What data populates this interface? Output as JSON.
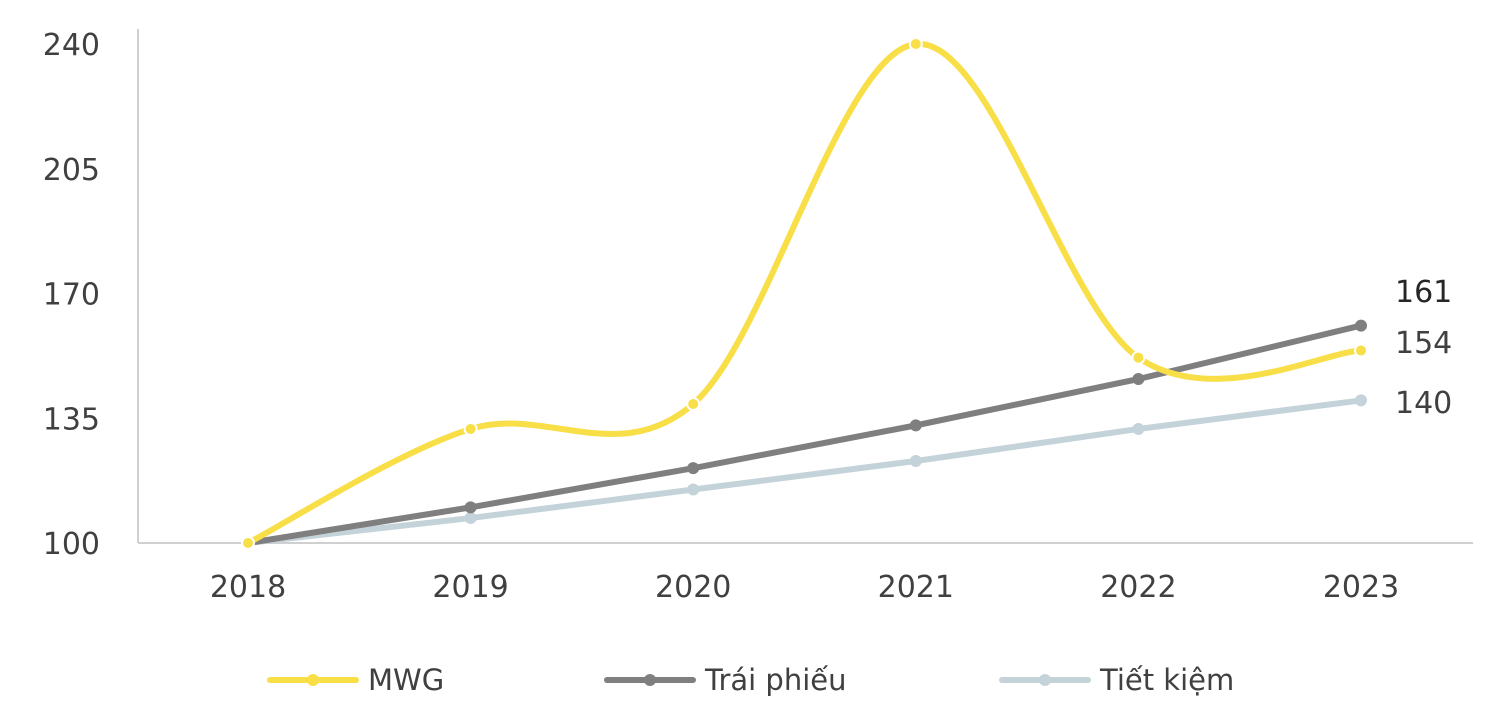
{
  "chart_data": {
    "type": "line",
    "categories": [
      "2018",
      "2019",
      "2020",
      "2021",
      "2022",
      "2023"
    ],
    "ylim": [
      100,
      240
    ],
    "yticks": [
      "100",
      "135",
      "170",
      "205",
      "240"
    ],
    "grid": false,
    "legend_position": "bottom",
    "series": [
      {
        "name": "MWG",
        "values": [
          100,
          132,
          139,
          240,
          152,
          154
        ],
        "color": "#F8DE47",
        "smooth": true,
        "end_label": "154"
      },
      {
        "name": "Trái phiếu",
        "values": [
          100,
          110,
          121,
          133,
          146,
          161
        ],
        "color": "#7F7F7F",
        "smooth": false,
        "end_label": "161"
      },
      {
        "name": "Tiết kiệm",
        "values": [
          100,
          107,
          115,
          123,
          132,
          140
        ],
        "color": "#C4D3DA",
        "smooth": false,
        "end_label": "140"
      }
    ]
  }
}
